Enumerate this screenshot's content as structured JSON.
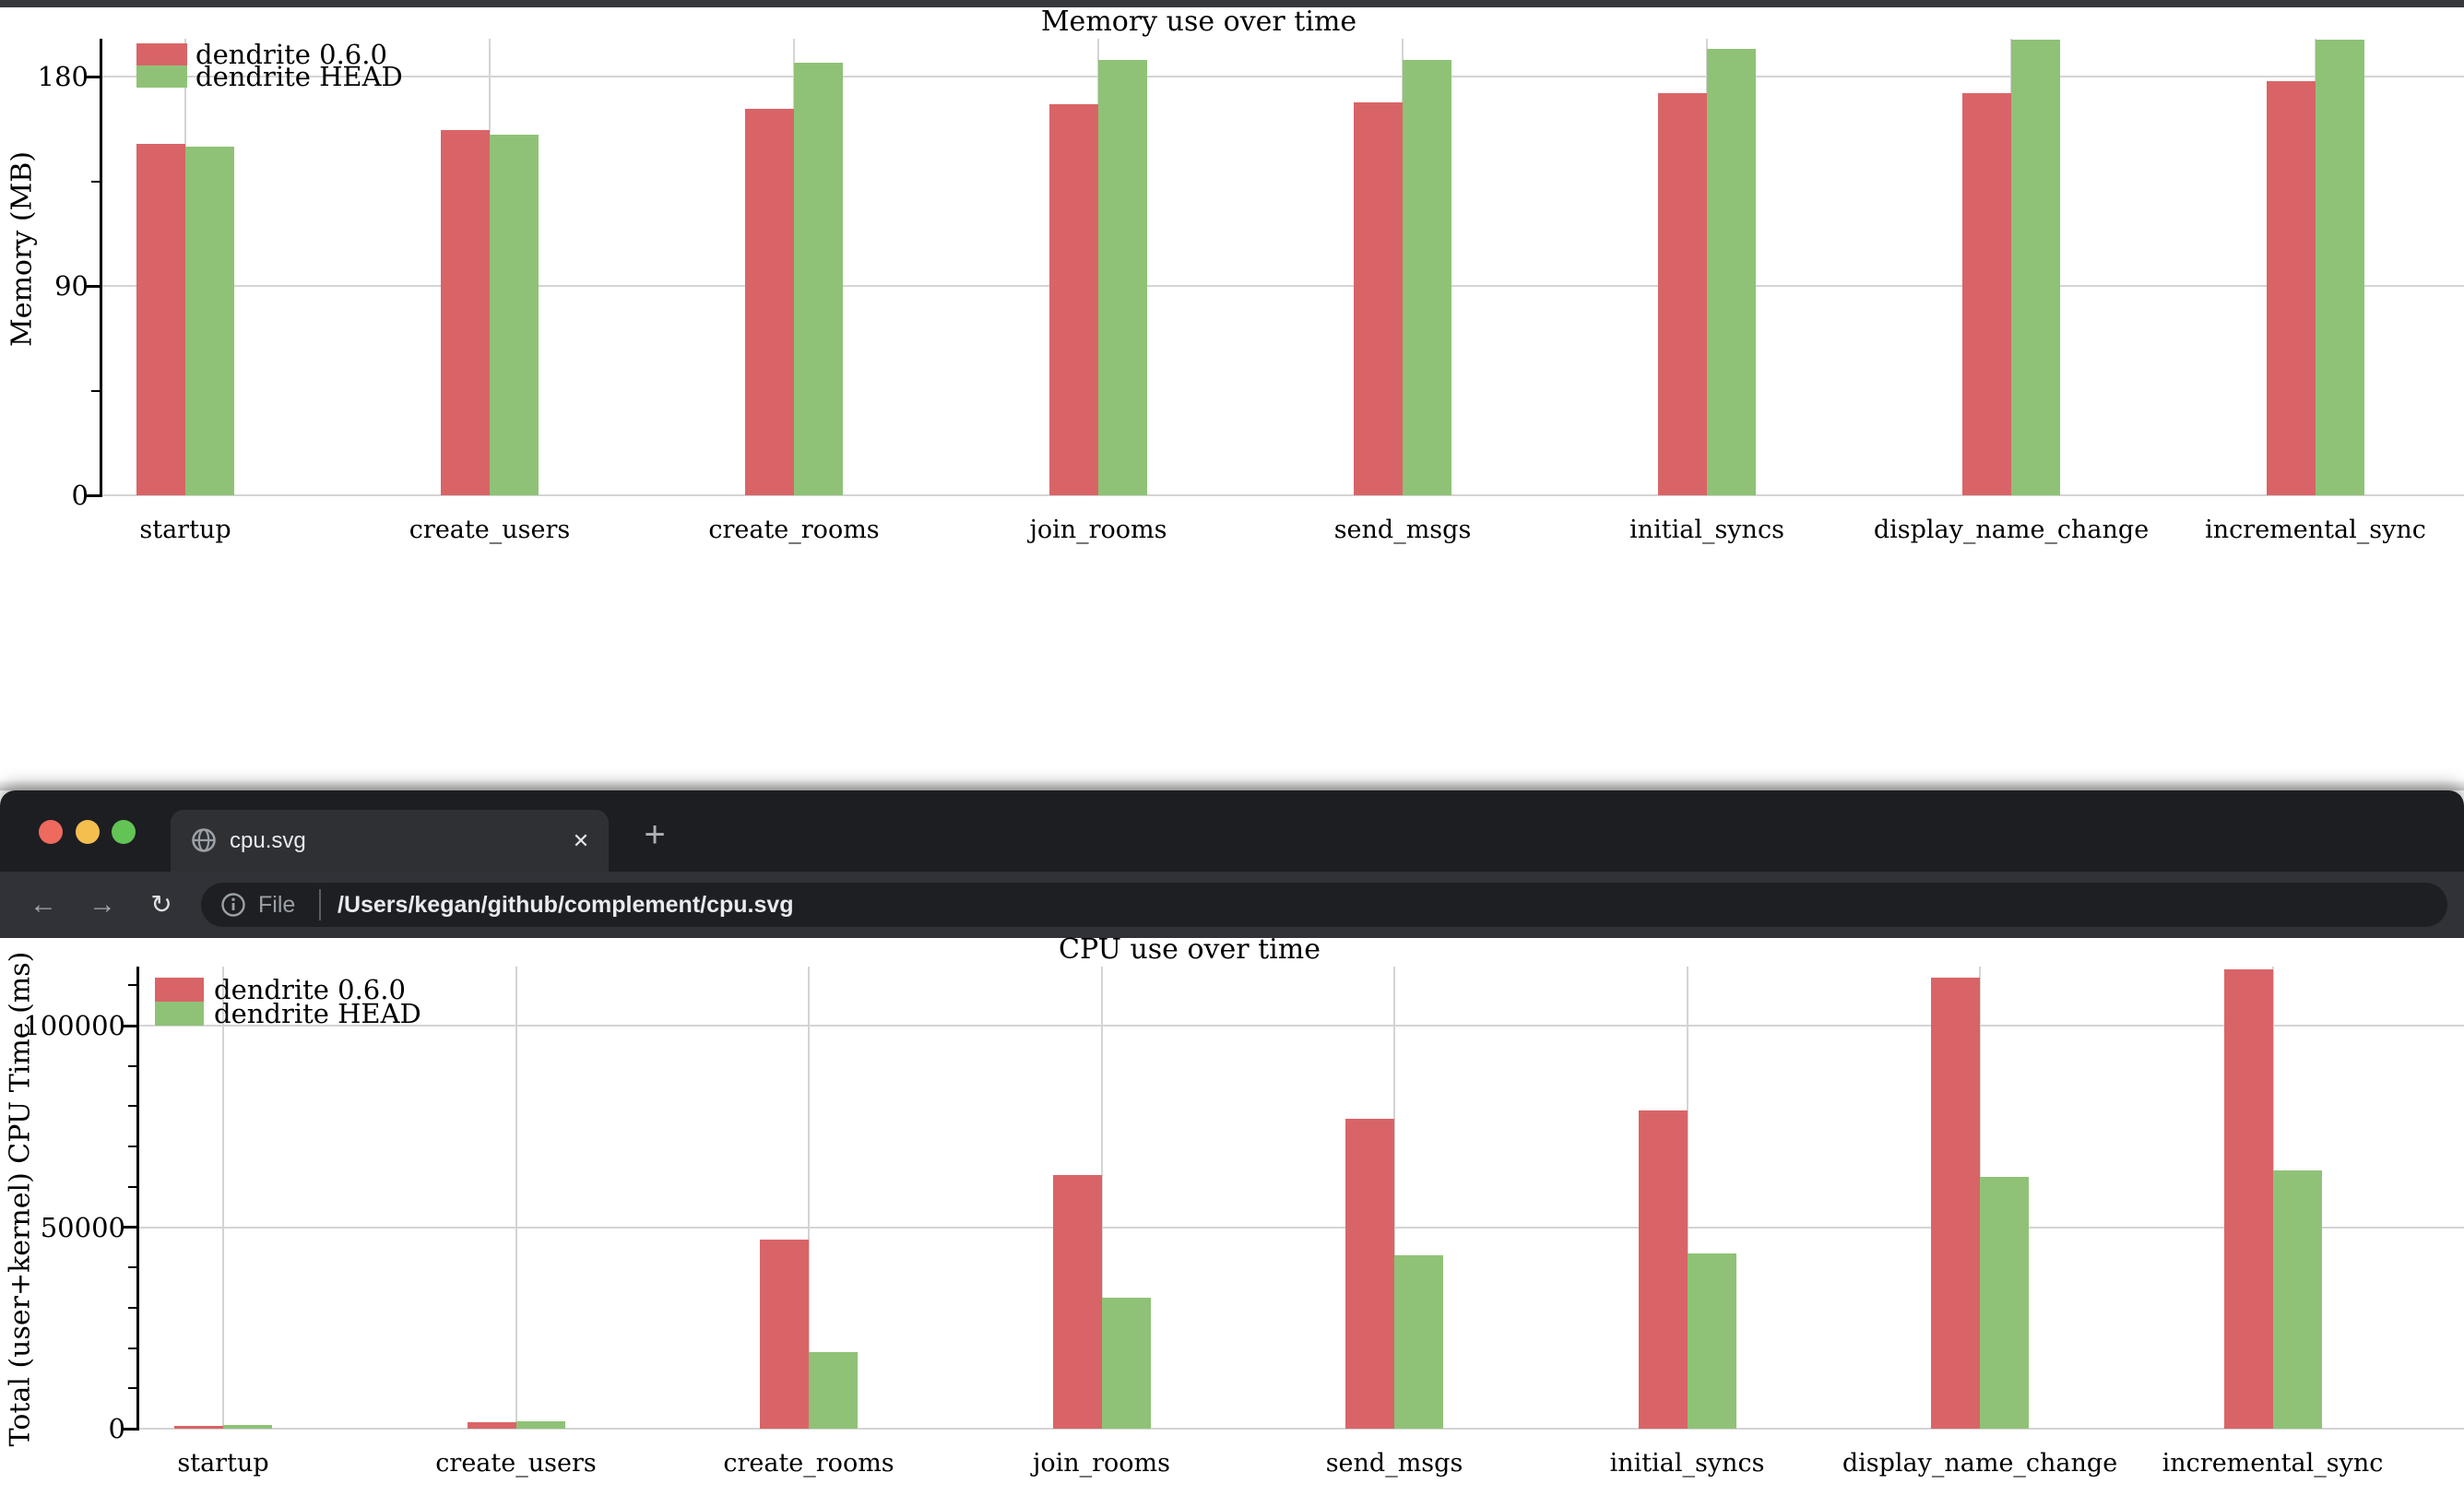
{
  "browser": {
    "traffic_lights": {
      "close_color": "#ee6a5e",
      "minimize_color": "#f5bf4f",
      "zoom_color": "#62c454"
    },
    "tab": {
      "title": "cpu.svg",
      "close_glyph": "✕"
    },
    "new_tab_glyph": "+",
    "toolbar": {
      "back_glyph": "←",
      "forward_glyph": "→",
      "reload_glyph": "↻",
      "file_label": "File",
      "url": "/Users/kegan/github/complement/cpu.svg"
    }
  },
  "chart_data": [
    {
      "type": "bar",
      "title": "Memory use over time",
      "xlabel": "",
      "ylabel": "Memory (MB)",
      "categories": [
        "startup",
        "create_users",
        "create_rooms",
        "join_rooms",
        "send_msgs",
        "initial_syncs",
        "display_name_change",
        "incremental_sync"
      ],
      "series": [
        {
          "name": "dendrite 0.6.0",
          "color": "#d96467",
          "values": [
            151,
            157,
            166,
            168,
            169,
            173,
            173,
            178
          ]
        },
        {
          "name": "dendrite HEAD",
          "color": "#8fc276",
          "values": [
            150,
            155,
            186,
            187,
            187,
            192,
            196,
            196
          ]
        }
      ],
      "ylim": [
        0,
        196
      ],
      "yticks": [
        0,
        90,
        180
      ],
      "minor_yticks": [
        45,
        135
      ],
      "grid": true,
      "legend_position": "top-left"
    },
    {
      "type": "bar",
      "title": "CPU use over time",
      "xlabel": "",
      "ylabel": "Total (user+kernel) CPU Time (ms)",
      "categories": [
        "startup",
        "create_users",
        "create_rooms",
        "join_rooms",
        "send_msgs",
        "initial_syncs",
        "display_name_change",
        "incremental_sync"
      ],
      "series": [
        {
          "name": "dendrite 0.6.0",
          "color": "#d96467",
          "values": [
            700,
            1600,
            47000,
            63000,
            77000,
            79000,
            112000,
            114000
          ]
        },
        {
          "name": "dendrite HEAD",
          "color": "#8fc276",
          "values": [
            1000,
            1900,
            19000,
            32500,
            43000,
            43500,
            62500,
            64000
          ]
        }
      ],
      "ylim": [
        0,
        114600
      ],
      "yticks": [
        0,
        50000,
        100000
      ],
      "minor_yticks": [
        10000,
        20000,
        30000,
        40000,
        60000,
        70000,
        80000,
        90000,
        110000
      ],
      "grid": true,
      "legend_position": "top-left"
    }
  ]
}
